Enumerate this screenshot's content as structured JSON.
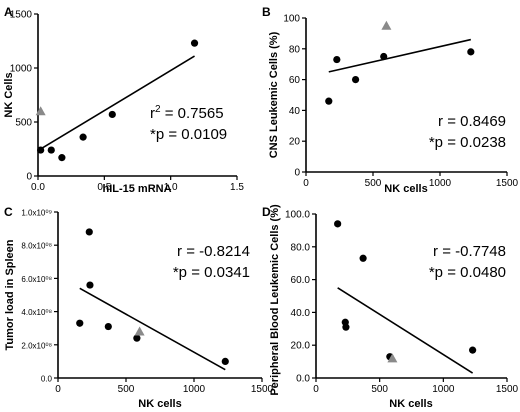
{
  "colors": {
    "circle": "#000000",
    "triangle": "#8a8a8a",
    "axis": "#000000"
  },
  "chart_data": [
    {
      "panel": "A",
      "type": "scatter",
      "xlabel": "hIL-15 mRNA",
      "ylabel": "NK Cells",
      "xlim": [
        0,
        1.5
      ],
      "ylim": [
        0,
        1500
      ],
      "xticks": [
        0,
        0.5,
        1,
        1.5
      ],
      "xtick_labels": [
        "0.0",
        "0.5",
        "1.0",
        "1.5"
      ],
      "yticks": [
        0,
        500,
        1000,
        1500
      ],
      "ytick_labels": [
        "0",
        "500",
        "1000",
        "1500"
      ],
      "circles": [
        {
          "x": 0.02,
          "y": 240
        },
        {
          "x": 0.1,
          "y": 240
        },
        {
          "x": 0.18,
          "y": 170
        },
        {
          "x": 0.34,
          "y": 360
        },
        {
          "x": 0.56,
          "y": 570
        },
        {
          "x": 1.18,
          "y": 1230
        }
      ],
      "triangles": [
        {
          "x": 0.02,
          "y": 600
        }
      ],
      "regression": {
        "x1": 0.0,
        "y1": 235,
        "x2": 1.18,
        "y2": 1110
      },
      "stats": {
        "line1_prefix": "r",
        "line1_sup": "2",
        "line1_suffix": " = 0.7565",
        "line2": "*p = 0.0109"
      }
    },
    {
      "panel": "B",
      "type": "scatter",
      "xlabel": "NK cells",
      "ylabel": "CNS Leukemic Cells (%)",
      "xlim": [
        0,
        1500
      ],
      "ylim": [
        0,
        100
      ],
      "xticks": [
        0,
        500,
        1000,
        1500
      ],
      "xtick_labels": [
        "0",
        "500",
        "1000",
        "1500"
      ],
      "yticks": [
        0,
        20,
        40,
        60,
        80,
        100
      ],
      "ytick_labels": [
        "0",
        "20",
        "40",
        "60",
        "80",
        "100"
      ],
      "circles": [
        {
          "x": 170,
          "y": 46
        },
        {
          "x": 230,
          "y": 73
        },
        {
          "x": 370,
          "y": 60
        },
        {
          "x": 580,
          "y": 75
        },
        {
          "x": 1230,
          "y": 78
        }
      ],
      "triangles": [
        {
          "x": 600,
          "y": 95
        }
      ],
      "regression": {
        "x1": 170,
        "y1": 65,
        "x2": 1230,
        "y2": 86
      },
      "stats": {
        "line1": "r = 0.8469",
        "line2": "*p = 0.0238"
      }
    },
    {
      "panel": "C",
      "type": "scatter",
      "xlabel": "NK cells",
      "ylabel": "Tumor load in Spleen",
      "xlim": [
        0,
        1500
      ],
      "ylim": [
        0,
        1.0
      ],
      "xticks": [
        0,
        500,
        1000,
        1500
      ],
      "xtick_labels": [
        "0",
        "500",
        "1000",
        "1500"
      ],
      "yticks": [
        0,
        0.2,
        0.4,
        0.6,
        0.8,
        1.0
      ],
      "ytick_labels": [
        "0.0",
        "2.0x10⁰⁸",
        "4.0x10⁰⁸",
        "6.0x10⁰⁸",
        "8.0x10⁰⁸",
        "1.0x10⁰⁹"
      ],
      "circles": [
        {
          "x": 160,
          "y": 0.33
        },
        {
          "x": 230,
          "y": 0.88
        },
        {
          "x": 235,
          "y": 0.56
        },
        {
          "x": 370,
          "y": 0.31
        },
        {
          "x": 580,
          "y": 0.24
        },
        {
          "x": 1230,
          "y": 0.1
        }
      ],
      "triangles": [
        {
          "x": 600,
          "y": 0.28
        }
      ],
      "regression": {
        "x1": 160,
        "y1": 0.54,
        "x2": 1230,
        "y2": 0.05
      },
      "stats": {
        "line1": "r = -0.8214",
        "line2": "*p = 0.0341"
      }
    },
    {
      "panel": "D",
      "type": "scatter",
      "xlabel": "NK cells",
      "ylabel": "Peripheral Blood Leukemic Cells (%)",
      "xlim": [
        0,
        1500
      ],
      "ylim": [
        0,
        100
      ],
      "xticks": [
        0,
        500,
        1000,
        1500
      ],
      "xtick_labels": [
        "0",
        "500",
        "1000",
        "1500"
      ],
      "yticks": [
        0,
        20,
        40,
        60,
        80,
        100
      ],
      "ytick_labels": [
        "0.0",
        "20.0",
        "40.0",
        "60.0",
        "80.0",
        "100.0"
      ],
      "circles": [
        {
          "x": 170,
          "y": 94
        },
        {
          "x": 230,
          "y": 34
        },
        {
          "x": 235,
          "y": 31
        },
        {
          "x": 370,
          "y": 73
        },
        {
          "x": 580,
          "y": 13
        },
        {
          "x": 1230,
          "y": 17
        }
      ],
      "triangles": [
        {
          "x": 600,
          "y": 12
        }
      ],
      "regression": {
        "x1": 170,
        "y1": 55,
        "x2": 1230,
        "y2": 3
      },
      "stats": {
        "line1": "r = -0.7748",
        "line2": "*p = 0.0480"
      }
    }
  ]
}
